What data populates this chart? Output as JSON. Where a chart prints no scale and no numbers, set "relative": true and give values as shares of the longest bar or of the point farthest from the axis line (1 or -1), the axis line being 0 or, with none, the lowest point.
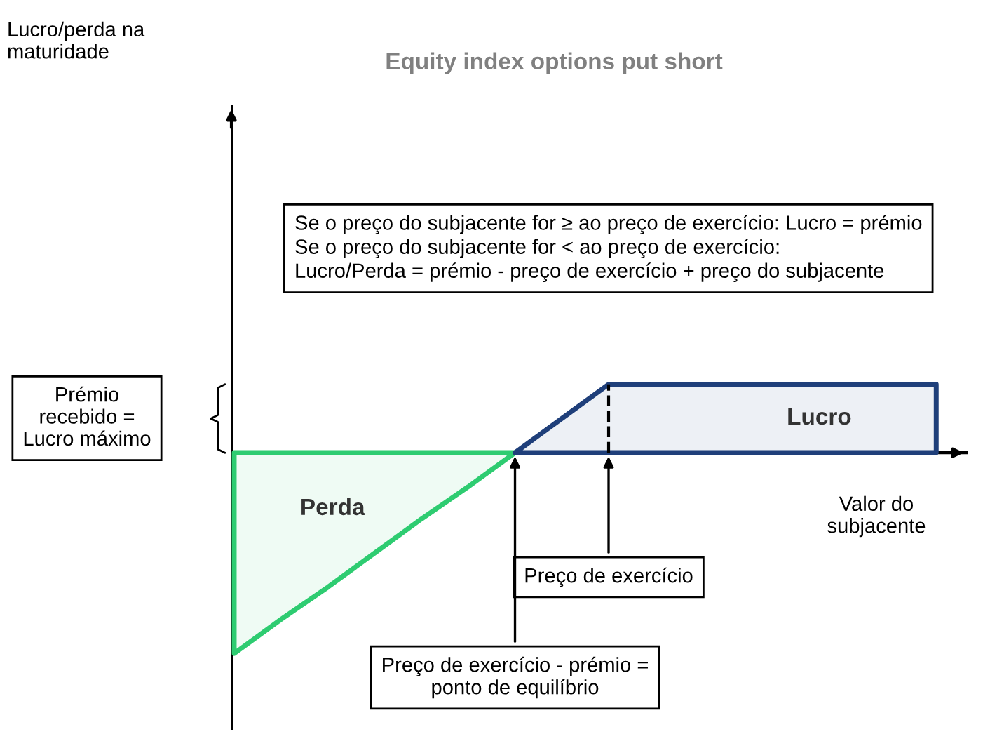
{
  "chart_data": {
    "type": "area",
    "title": "Equity index options put short",
    "xlabel": "Valor do subjacente",
    "relative": true,
    "categories": [
      null,
      null,
      null,
      null,
      null,
      null,
      null,
      null,
      null,
      null,
      null,
      null,
      null,
      null,
      null,
      null
    ],
    "series": [
      {
        "name": "Perda",
        "color": "#2ecc71",
        "values": [
          -1,
          -0.83,
          -0.67,
          -0.5,
          -0.33,
          -0.17,
          0,
          null,
          null,
          null,
          null,
          null,
          null,
          null,
          null,
          null
        ]
      },
      {
        "name": "Lucro",
        "color": "#1f3f7a",
        "values": [
          null,
          null,
          null,
          null,
          null,
          null,
          0,
          0.17,
          0.34,
          0.34,
          0.34,
          0.34,
          0.34,
          0.34,
          0.34,
          0.34
        ]
      }
    ],
    "annotations": [
      "Lucro/perda na maturidade",
      "Se o preço do subjacente for ≥ ao preço de exercício: Lucro = prémio\nSe o preço do subjacente for < ao preço de exercício:\nLucro/Perda = prémio - preço de exercício + preço do subjacente",
      "Prémio recebido = Lucro máximo",
      "Preço de exercício",
      "Preço de exercício - prémio = ponto de equilíbrio"
    ]
  }
}
